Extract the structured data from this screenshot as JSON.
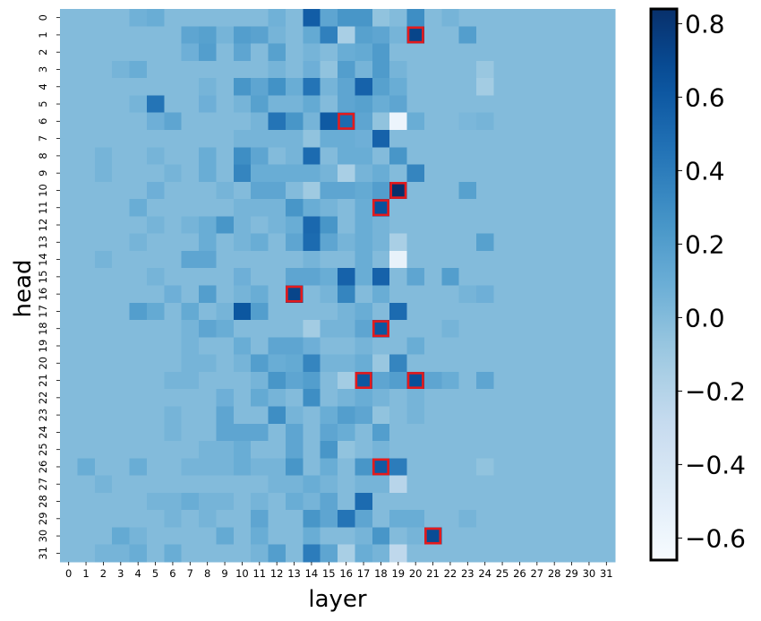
{
  "chart_data": {
    "type": "heatmap",
    "title": "",
    "xlabel": "layer",
    "ylabel": "head",
    "x_categories": [
      "0",
      "1",
      "2",
      "3",
      "4",
      "5",
      "6",
      "7",
      "8",
      "9",
      "10",
      "11",
      "12",
      "13",
      "14",
      "15",
      "16",
      "17",
      "18",
      "19",
      "20",
      "21",
      "22",
      "23",
      "24",
      "25",
      "26",
      "27",
      "28",
      "29",
      "30",
      "31"
    ],
    "y_categories": [
      "0",
      "1",
      "2",
      "3",
      "4",
      "5",
      "6",
      "7",
      "8",
      "9",
      "10",
      "11",
      "12",
      "13",
      "14",
      "15",
      "16",
      "17",
      "18",
      "19",
      "20",
      "21",
      "22",
      "23",
      "24",
      "25",
      "26",
      "27",
      "28",
      "29",
      "30",
      "31"
    ],
    "colormap": "Blues",
    "vmin": -0.66,
    "vmax": 0.84,
    "colorbar_ticks": [
      "0.8",
      "0.6",
      "0.4",
      "0.2",
      "0.0",
      "−0.2",
      "−0.4",
      "−0.6"
    ],
    "colorbar_tick_values": [
      0.8,
      0.6,
      0.4,
      0.2,
      0.0,
      -0.2,
      -0.4,
      -0.6
    ],
    "values": [
      [
        0.0,
        0.0,
        0.0,
        0.0,
        0.07,
        0.1,
        0.0,
        0.0,
        0.0,
        0.0,
        0.0,
        0.0,
        0.07,
        0.0,
        0.58,
        0.15,
        0.25,
        0.25,
        -0.05,
        0.0,
        0.3,
        0.0,
        0.05,
        0.0,
        0.0,
        0.0,
        0.0,
        0.0,
        0.0,
        0.0,
        0.0,
        0.0
      ],
      [
        0.0,
        0.0,
        0.0,
        0.0,
        0.0,
        0.0,
        0.0,
        0.15,
        0.18,
        0.05,
        0.2,
        0.17,
        0.05,
        0.0,
        0.12,
        0.38,
        -0.15,
        0.18,
        0.15,
        0.05,
        0.72,
        0.0,
        0.0,
        0.2,
        0.0,
        0.0,
        0.0,
        0.0,
        0.0,
        0.0,
        0.0,
        0.0
      ],
      [
        0.0,
        0.0,
        0.0,
        0.0,
        0.0,
        0.0,
        0.0,
        0.08,
        0.2,
        0.0,
        0.15,
        0.0,
        0.18,
        0.0,
        0.05,
        0.0,
        0.1,
        0.12,
        0.22,
        0.0,
        0.0,
        0.0,
        0.0,
        0.0,
        0.0,
        0.0,
        0.0,
        0.0,
        0.0,
        0.0,
        0.0,
        0.0
      ],
      [
        0.0,
        0.0,
        0.0,
        0.05,
        0.1,
        0.0,
        0.0,
        0.0,
        0.0,
        0.0,
        0.0,
        0.0,
        0.05,
        0.0,
        0.08,
        -0.05,
        0.2,
        0.05,
        0.22,
        0.05,
        0.0,
        0.0,
        0.0,
        0.0,
        -0.08,
        0.0,
        0.0,
        0.0,
        0.0,
        0.0,
        0.0,
        0.0
      ],
      [
        0.0,
        0.0,
        0.0,
        0.0,
        0.0,
        0.0,
        0.0,
        0.0,
        0.05,
        0.0,
        0.25,
        0.15,
        0.28,
        0.1,
        0.45,
        0.05,
        0.15,
        0.55,
        0.18,
        0.1,
        0.0,
        0.0,
        0.0,
        0.0,
        -0.12,
        0.0,
        0.0,
        0.0,
        0.0,
        0.0,
        0.0,
        0.0
      ],
      [
        0.0,
        0.0,
        0.0,
        0.0,
        0.05,
        0.45,
        0.0,
        0.0,
        0.08,
        0.0,
        0.05,
        0.18,
        0.05,
        0.05,
        0.12,
        0.0,
        0.15,
        0.18,
        0.1,
        0.15,
        0.0,
        0.0,
        0.0,
        0.0,
        0.0,
        0.0,
        0.0,
        0.0,
        0.0,
        0.0,
        0.0,
        0.0
      ],
      [
        0.0,
        0.0,
        0.0,
        0.0,
        0.0,
        0.08,
        0.15,
        0.0,
        0.0,
        0.0,
        0.0,
        0.05,
        0.45,
        0.25,
        0.05,
        0.6,
        0.5,
        0.15,
        -0.05,
        -0.58,
        0.1,
        0.0,
        0.0,
        0.03,
        0.05,
        0.0,
        0.0,
        0.0,
        0.0,
        0.0,
        0.0,
        0.0
      ],
      [
        0.0,
        0.0,
        0.0,
        0.0,
        0.0,
        0.0,
        0.0,
        0.0,
        0.0,
        0.0,
        0.05,
        0.05,
        0.05,
        0.05,
        -0.05,
        0.1,
        0.1,
        0.08,
        0.55,
        0.0,
        0.0,
        0.0,
        0.0,
        0.0,
        0.0,
        0.0,
        0.0,
        0.0,
        0.0,
        0.0,
        0.0,
        0.0
      ],
      [
        0.0,
        0.0,
        0.05,
        0.0,
        0.0,
        0.05,
        0.0,
        0.0,
        0.1,
        0.0,
        0.3,
        0.15,
        0.0,
        0.05,
        0.5,
        0.0,
        0.1,
        0.1,
        0.0,
        0.25,
        0.0,
        0.0,
        0.0,
        0.0,
        0.0,
        0.0,
        0.0,
        0.0,
        0.0,
        0.0,
        0.0,
        0.0
      ],
      [
        0.0,
        0.0,
        0.05,
        0.0,
        0.0,
        0.0,
        0.05,
        0.0,
        0.1,
        0.0,
        0.35,
        0.1,
        0.1,
        0.1,
        0.1,
        0.05,
        -0.15,
        0.05,
        0.1,
        0.0,
        0.35,
        0.0,
        0.0,
        0.0,
        0.0,
        0.0,
        0.0,
        0.0,
        0.0,
        0.0,
        0.0,
        0.0
      ],
      [
        0.0,
        0.0,
        0.0,
        0.0,
        0.0,
        0.08,
        0.0,
        0.0,
        0.0,
        0.05,
        0.0,
        0.15,
        0.15,
        0.0,
        -0.1,
        0.15,
        0.15,
        0.12,
        0.2,
        0.84,
        0.0,
        0.0,
        0.0,
        0.18,
        0.0,
        0.0,
        0.0,
        0.0,
        0.0,
        0.0,
        0.0,
        0.0
      ],
      [
        0.0,
        0.0,
        0.0,
        0.0,
        0.1,
        0.0,
        0.0,
        0.0,
        0.0,
        0.0,
        0.05,
        0.05,
        0.05,
        0.25,
        0.1,
        0.05,
        0.0,
        0.1,
        0.65,
        0.0,
        0.0,
        0.0,
        0.0,
        0.0,
        0.0,
        0.0,
        0.0,
        0.0,
        0.0,
        0.0,
        0.0,
        0.0
      ],
      [
        0.0,
        0.0,
        0.0,
        0.0,
        0.0,
        0.05,
        0.0,
        0.05,
        0.1,
        0.25,
        0.05,
        0.0,
        0.05,
        0.1,
        0.52,
        0.25,
        0.0,
        0.1,
        0.05,
        0.0,
        0.0,
        0.0,
        0.0,
        0.0,
        0.0,
        0.0,
        0.0,
        0.0,
        0.0,
        0.0,
        0.0,
        0.0
      ],
      [
        0.0,
        0.0,
        0.0,
        0.0,
        0.05,
        0.0,
        0.0,
        0.0,
        0.1,
        0.0,
        0.05,
        0.1,
        0.0,
        0.15,
        0.5,
        0.15,
        0.05,
        0.1,
        0.05,
        -0.15,
        0.0,
        0.0,
        0.0,
        0.0,
        0.18,
        0.0,
        0.0,
        0.0,
        0.0,
        0.0,
        0.0,
        0.0
      ],
      [
        0.0,
        0.0,
        0.05,
        0.0,
        0.0,
        0.0,
        0.0,
        0.15,
        0.15,
        0.0,
        0.0,
        0.0,
        0.0,
        0.0,
        0.05,
        0.0,
        0.0,
        0.1,
        0.0,
        -0.55,
        0.0,
        0.0,
        0.0,
        0.0,
        0.0,
        0.0,
        0.0,
        0.0,
        0.0,
        0.0,
        0.0,
        0.0
      ],
      [
        0.0,
        0.0,
        0.0,
        0.0,
        0.0,
        0.05,
        0.0,
        0.0,
        0.0,
        0.0,
        0.08,
        0.0,
        0.0,
        0.15,
        0.15,
        0.1,
        0.55,
        0.1,
        0.55,
        0.0,
        0.15,
        0.0,
        0.2,
        0.0,
        0.0,
        0.0,
        0.0,
        0.0,
        0.0,
        0.0,
        0.0,
        0.0
      ],
      [
        0.0,
        0.0,
        0.0,
        0.0,
        0.0,
        0.0,
        0.08,
        0.0,
        0.2,
        0.0,
        0.05,
        0.1,
        0.0,
        0.72,
        0.0,
        0.05,
        0.35,
        0.0,
        0.1,
        0.0,
        0.0,
        0.0,
        0.0,
        0.05,
        0.08,
        0.0,
        0.0,
        0.0,
        0.0,
        0.0,
        0.0,
        0.0
      ],
      [
        0.0,
        0.0,
        0.0,
        0.0,
        0.2,
        0.12,
        0.0,
        0.12,
        0.0,
        0.05,
        0.62,
        0.2,
        0.0,
        0.0,
        0.0,
        0.0,
        0.05,
        0.1,
        0.0,
        0.5,
        0.0,
        0.0,
        0.0,
        0.0,
        0.0,
        0.0,
        0.0,
        0.0,
        0.0,
        0.0,
        0.0,
        0.0
      ],
      [
        0.0,
        0.0,
        0.0,
        0.0,
        0.0,
        0.0,
        0.0,
        0.05,
        0.15,
        0.1,
        0.0,
        0.0,
        0.0,
        0.0,
        -0.12,
        0.05,
        0.05,
        0.15,
        0.62,
        0.0,
        0.0,
        0.0,
        0.05,
        0.0,
        0.0,
        0.0,
        0.0,
        0.0,
        0.0,
        0.0,
        0.0,
        0.0
      ],
      [
        0.0,
        0.0,
        0.0,
        0.0,
        0.0,
        0.0,
        0.0,
        0.05,
        0.0,
        0.0,
        0.1,
        0.0,
        0.15,
        0.15,
        0.08,
        0.0,
        0.0,
        0.05,
        0.0,
        0.0,
        0.1,
        0.0,
        0.0,
        0.0,
        0.0,
        0.0,
        0.0,
        0.0,
        0.0,
        0.0,
        0.0,
        0.0
      ],
      [
        0.0,
        0.0,
        0.0,
        0.0,
        0.0,
        0.0,
        0.0,
        0.05,
        0.05,
        0.0,
        0.05,
        0.2,
        0.1,
        0.12,
        0.35,
        0.05,
        0.05,
        0.1,
        -0.08,
        0.35,
        0.0,
        0.0,
        0.0,
        0.0,
        0.0,
        0.0,
        0.0,
        0.0,
        0.0,
        0.0,
        0.0,
        0.0
      ],
      [
        0.0,
        0.0,
        0.0,
        0.0,
        0.0,
        0.0,
        0.05,
        0.05,
        0.0,
        0.0,
        0.0,
        0.05,
        0.25,
        0.15,
        0.2,
        0.0,
        -0.12,
        0.62,
        0.15,
        0.2,
        0.66,
        0.15,
        0.1,
        0.0,
        0.15,
        0.0,
        0.0,
        0.0,
        0.0,
        0.0,
        0.0,
        0.0
      ],
      [
        0.0,
        0.0,
        0.0,
        0.0,
        0.0,
        0.0,
        0.0,
        0.0,
        0.0,
        0.08,
        0.0,
        0.12,
        0.05,
        0.0,
        0.3,
        0.0,
        0.05,
        0.1,
        0.05,
        0.0,
        0.05,
        0.0,
        0.0,
        0.0,
        0.0,
        0.0,
        0.0,
        0.0,
        0.0,
        0.0,
        0.0,
        0.0
      ],
      [
        0.0,
        0.0,
        0.0,
        0.0,
        0.0,
        0.0,
        0.05,
        0.0,
        0.0,
        0.15,
        0.0,
        0.0,
        0.3,
        0.05,
        0.0,
        0.1,
        0.2,
        0.15,
        -0.05,
        0.0,
        0.05,
        0.0,
        0.0,
        0.0,
        0.0,
        0.0,
        0.0,
        0.0,
        0.0,
        0.0,
        0.0,
        0.0
      ],
      [
        0.0,
        0.0,
        0.0,
        0.0,
        0.0,
        0.0,
        0.05,
        0.0,
        0.0,
        0.15,
        0.15,
        0.15,
        0.0,
        0.15,
        0.0,
        0.15,
        0.1,
        0.0,
        0.2,
        0.0,
        0.0,
        0.0,
        0.0,
        0.0,
        0.0,
        0.0,
        0.0,
        0.0,
        0.0,
        0.0,
        0.0,
        0.0
      ],
      [
        0.0,
        0.0,
        0.0,
        0.0,
        0.0,
        0.0,
        0.0,
        0.0,
        0.05,
        0.05,
        0.1,
        0.0,
        0.0,
        0.15,
        0.0,
        0.25,
        -0.05,
        0.0,
        0.05,
        0.0,
        0.0,
        0.0,
        0.0,
        0.0,
        0.0,
        0.0,
        0.0,
        0.0,
        0.0,
        0.0,
        0.0,
        0.0
      ],
      [
        0.0,
        0.1,
        0.0,
        0.0,
        0.1,
        0.0,
        0.0,
        0.05,
        0.05,
        0.05,
        0.1,
        0.05,
        0.05,
        0.25,
        0.0,
        0.1,
        0.0,
        0.25,
        0.6,
        0.4,
        0.0,
        0.0,
        0.0,
        0.0,
        -0.05,
        0.0,
        0.0,
        0.0,
        0.0,
        0.0,
        0.0,
        0.0
      ],
      [
        0.0,
        0.0,
        0.05,
        0.0,
        0.0,
        0.0,
        0.0,
        0.0,
        0.0,
        0.0,
        0.0,
        0.0,
        0.05,
        0.05,
        0.1,
        0.05,
        0.0,
        0.05,
        0.05,
        -0.22,
        0.0,
        0.0,
        0.0,
        0.0,
        0.0,
        0.0,
        0.0,
        0.0,
        0.0,
        0.0,
        0.0,
        0.0
      ],
      [
        0.0,
        0.0,
        0.0,
        0.0,
        0.0,
        0.05,
        0.05,
        0.1,
        0.05,
        0.05,
        0.0,
        0.05,
        0.0,
        0.1,
        0.05,
        0.15,
        0.0,
        0.5,
        0.0,
        0.0,
        0.0,
        0.0,
        0.0,
        0.0,
        0.0,
        0.0,
        0.0,
        0.0,
        0.0,
        0.0,
        0.0,
        0.0
      ],
      [
        0.0,
        0.0,
        0.0,
        0.0,
        0.0,
        0.0,
        0.05,
        0.0,
        0.05,
        0.0,
        0.0,
        0.15,
        0.0,
        0.0,
        0.25,
        0.15,
        0.45,
        0.15,
        0.0,
        0.1,
        0.1,
        0.0,
        0.0,
        0.05,
        0.0,
        0.0,
        0.0,
        0.0,
        0.0,
        0.0,
        0.0,
        0.0
      ],
      [
        0.0,
        0.0,
        0.0,
        0.12,
        0.05,
        0.0,
        0.0,
        0.0,
        0.0,
        0.12,
        0.0,
        0.1,
        0.0,
        0.0,
        0.1,
        0.0,
        0.0,
        0.05,
        0.25,
        0.0,
        0.05,
        0.68,
        0.0,
        0.0,
        0.0,
        0.0,
        0.0,
        0.0,
        0.0,
        0.0,
        0.0,
        0.0
      ],
      [
        0.0,
        0.0,
        0.05,
        0.05,
        0.1,
        0.0,
        0.1,
        0.0,
        0.0,
        0.0,
        0.0,
        0.05,
        0.2,
        0.0,
        0.4,
        0.15,
        -0.15,
        0.1,
        0.05,
        -0.25,
        0.0,
        0.0,
        0.0,
        0.0,
        0.0,
        0.0,
        0.0,
        0.0,
        0.0,
        0.0,
        0.0,
        0.0
      ]
    ],
    "highlighted_cells": [
      {
        "head": 1,
        "layer": 20
      },
      {
        "head": 6,
        "layer": 16
      },
      {
        "head": 10,
        "layer": 19
      },
      {
        "head": 11,
        "layer": 18
      },
      {
        "head": 16,
        "layer": 13
      },
      {
        "head": 18,
        "layer": 18
      },
      {
        "head": 21,
        "layer": 17
      },
      {
        "head": 21,
        "layer": 20
      },
      {
        "head": 26,
        "layer": 18
      },
      {
        "head": 30,
        "layer": 21
      }
    ],
    "highlight_color": "#e41a1c",
    "grid": false,
    "legend": "colorbar-right"
  }
}
